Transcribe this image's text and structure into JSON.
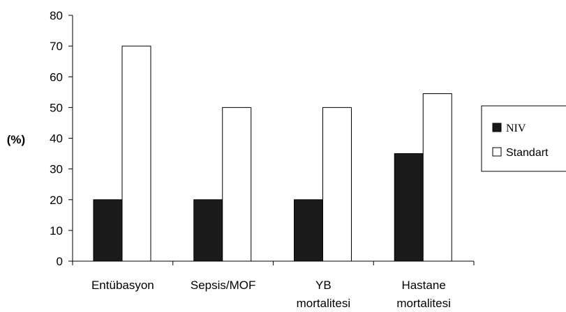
{
  "chart_data": {
    "type": "bar",
    "categories": [
      [
        "Entübasyon"
      ],
      [
        "Sepsis/MOF"
      ],
      [
        "YB",
        "mortalitesi"
      ],
      [
        "Hastane",
        "mortalitesi"
      ]
    ],
    "series": [
      {
        "name": "NIV",
        "values": [
          20,
          20,
          20,
          35
        ],
        "color": "#1a1a1a"
      },
      {
        "name": "Standart",
        "values": [
          70,
          50,
          50,
          54.5
        ],
        "color": "#ffffff"
      }
    ],
    "ylabel": "(%)",
    "ylim": [
      0,
      80
    ],
    "yticks": [
      0,
      10,
      20,
      30,
      40,
      50,
      60,
      70,
      80
    ],
    "grid": false,
    "legend": "right"
  }
}
